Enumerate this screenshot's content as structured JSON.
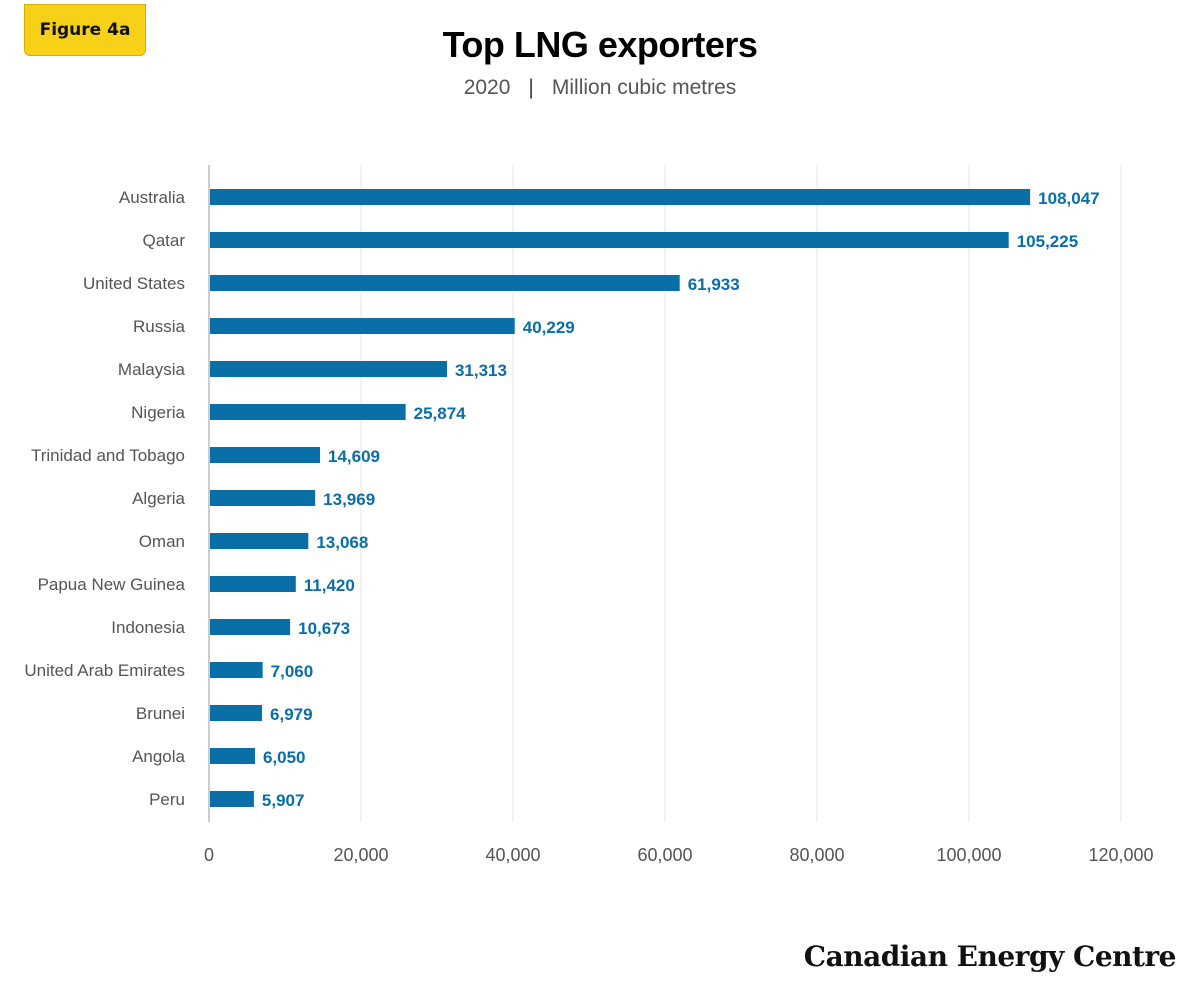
{
  "badge": {
    "label": "Figure 4a"
  },
  "header": {
    "title": "Top LNG exporters",
    "year": "2020",
    "separator": "|",
    "unit": "Million cubic metres"
  },
  "brand": {
    "name": "Canadian Energy Centre"
  },
  "colors": {
    "bar": "#0a6ea7",
    "value_label": "#0a6ea7",
    "grid": "#e6e6e6",
    "axis_text": "#555555",
    "badge": "#f7d117"
  },
  "chart_data": {
    "type": "bar",
    "orientation": "horizontal",
    "title": "Top LNG exporters",
    "subtitle": "2020 | Million cubic metres",
    "categories": [
      "Australia",
      "Qatar",
      "United States",
      "Russia",
      "Malaysia",
      "Nigeria",
      "Trinidad and Tobago",
      "Algeria",
      "Oman",
      "Papua New Guinea",
      "Indonesia",
      "United Arab Emirates",
      "Brunei",
      "Angola",
      "Peru"
    ],
    "values": [
      108047,
      105225,
      61933,
      40229,
      31313,
      25874,
      14609,
      13969,
      13068,
      11420,
      10673,
      7060,
      6979,
      6050,
      5907
    ],
    "value_labels": [
      "108,047",
      "105,225",
      "61,933",
      "40,229",
      "31,313",
      "25,874",
      "14,609",
      "13,969",
      "13,068",
      "11,420",
      "10,673",
      "7,060",
      "6,979",
      "6,050",
      "5,907"
    ],
    "xlim": [
      0,
      120000
    ],
    "xticks": [
      0,
      20000,
      40000,
      60000,
      80000,
      100000,
      120000
    ],
    "xtick_labels": [
      "0",
      "20,000",
      "40,000",
      "60,000",
      "80,000",
      "100,000",
      "120,000"
    ],
    "xlabel": "",
    "ylabel": "",
    "grid": true
  }
}
